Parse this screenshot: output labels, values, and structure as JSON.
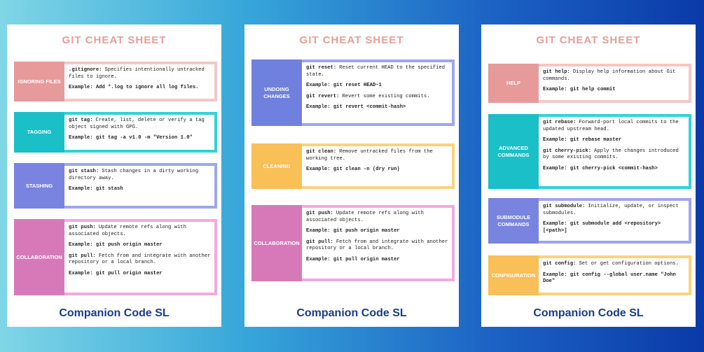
{
  "cards": [
    {
      "title": "GIT CHEAT SHEET",
      "footer": "Companion Code SL",
      "sections": [
        {
          "label": "IGNORING FILES",
          "color": "#e69a9a",
          "border": "#f6c6c6",
          "paragraphs": [
            {
              "strong": ".gitignore:",
              "text": "Specifies intentionally untracked files to ignore."
            },
            {
              "strong": "Example: Add *.log to ignore all log files."
            }
          ]
        },
        {
          "label": "TAGGING",
          "color": "#1bbfc7",
          "border": "#2fd3da",
          "paragraphs": [
            {
              "strong": "git tag:",
              "text": "Create, list, delete or verify a tag object signed with GPG."
            },
            {
              "strong": "Example: git tag -a v1.0 -m \"Version 1.0\""
            }
          ]
        },
        {
          "label": "STASHING",
          "color": "#7983e0",
          "border": "#9ea6ef",
          "paragraphs": [
            {
              "strong": "git stash:",
              "text": "Stash changes in a dirty working directory away."
            },
            {
              "strong": "Example: git stash"
            }
          ]
        },
        {
          "label": "COLLABORATION",
          "color": "#d779b9",
          "border": "#f3a9dd",
          "paragraphs": [
            {
              "strong": "git push:",
              "text": "Update remote refs along with associated objects."
            },
            {
              "strong": "Example: git push origin master"
            },
            {
              "strong": "git pull:",
              "text": "Fetch from and integrate with another repository or a local branch."
            },
            {
              "strong": "Example: git pull origin master"
            }
          ]
        }
      ]
    },
    {
      "title": "GIT CHEAT SHEET",
      "footer": "Companion Code SL",
      "sections": [
        {
          "label": "UNDOING CHANGES",
          "color": "#6f80de",
          "border": "#9ea6ef",
          "paragraphs": [
            {
              "strong": "git reset:",
              "text": "Reset current HEAD to the specified state."
            },
            {
              "strong": "Example: git reset HEAD~1"
            },
            {
              "strong": "git revert:",
              "text": "Revert some existing commits."
            },
            {
              "strong": "Example: git revert <commit-hash>"
            }
          ]
        },
        {
          "label": "CLEANING",
          "color": "#f8c057",
          "border": "#fbd27c",
          "paragraphs": [
            {
              "strong": "git clean:",
              "text": "Remove untracked files from the working tree."
            },
            {
              "strong": "Example: git clean -n (dry run)"
            }
          ]
        },
        {
          "label": "COLLABORATION",
          "color": "#d779b9",
          "border": "#f3a9dd",
          "paragraphs": [
            {
              "strong": "git push:",
              "text": "Update remote refs along with associated objects."
            },
            {
              "strong": "Example: git push origin master"
            },
            {
              "strong": "git pull:",
              "text": "Fetch from and integrate with another repository or a local branch."
            },
            {
              "strong": "Example: git pull origin master"
            }
          ]
        }
      ]
    },
    {
      "title": "GIT CHEAT SHEET",
      "footer": "Companion Code SL",
      "sections": [
        {
          "label": "HELP",
          "color": "#e69a9a",
          "border": "#f6c6c6",
          "paragraphs": [
            {
              "strong": "git help:",
              "text": "Display help information about Git commands."
            },
            {
              "strong": "Example: git help commit"
            }
          ]
        },
        {
          "label": "ADVANCED COMMANDS",
          "color": "#1bbfc7",
          "border": "#2fd3da",
          "paragraphs": [
            {
              "strong": "git rebase:",
              "text": "Forward-port local commits to the updated upstream head."
            },
            {
              "strong": "Example: git rebase master"
            },
            {
              "strong": "git cherry-pick:",
              "text": "Apply the changes introduced by some existing commits."
            },
            {
              "strong": "Example: git cherry-pick <commit-hash>"
            }
          ]
        },
        {
          "label": "SUBMODULE COMMANDS",
          "color": "#7983e0",
          "border": "#9ea6ef",
          "paragraphs": [
            {
              "strong": "git submodule:",
              "text": "Initialize, update, or inspect submodules."
            },
            {
              "strong": "Example: git submodule add <repository> [<path>]"
            }
          ]
        },
        {
          "label": "CONFIGURATION",
          "color": "#f8c057",
          "border": "#fbd27c",
          "paragraphs": [
            {
              "strong": "git config:",
              "text": "Set or get configuration options."
            },
            {
              "strong": "Example: git config --global user.name \"John Doe\""
            }
          ]
        }
      ]
    }
  ]
}
